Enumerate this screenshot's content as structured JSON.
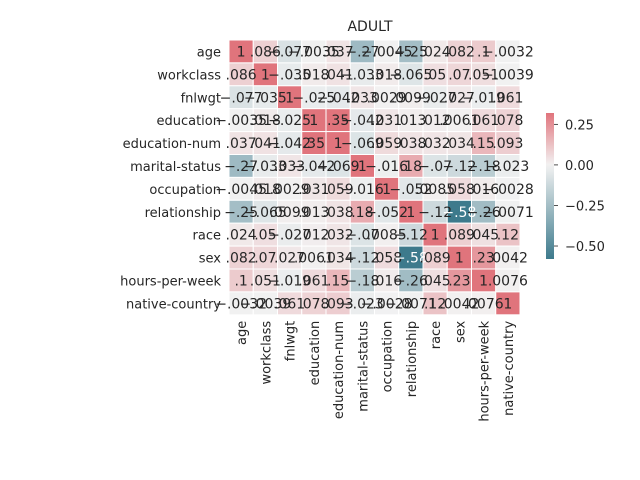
{
  "chart_data": {
    "type": "heatmap",
    "title": "ADULT",
    "variables": [
      "age",
      "workclass",
      "fnlwgt",
      "education",
      "education-num",
      "marital-status",
      "occupation",
      "relationship",
      "race",
      "sex",
      "hours-per-week",
      "native-country"
    ],
    "matrix": [
      [
        1,
        0.086,
        -0.077,
        -0.0035,
        0.037,
        -0.27,
        -0.0045,
        -0.25,
        0.024,
        0.082,
        0.1,
        -0.0032
      ],
      [
        0.086,
        1,
        -0.035,
        0.018,
        0.041,
        -0.033,
        0.018,
        -0.065,
        0.05,
        0.07,
        0.051,
        -0.0039
      ],
      [
        -0.077,
        -0.035,
        1,
        -0.025,
        -0.042,
        0.033,
        0.0029,
        0.0099,
        -0.027,
        0.027,
        -0.019,
        0.061
      ],
      [
        -0.0035,
        0.018,
        -0.025,
        1,
        0.35,
        -0.042,
        0.031,
        0.013,
        0.012,
        0.0061,
        0.061,
        0.078
      ],
      [
        0.037,
        0.041,
        -0.042,
        0.35,
        1,
        -0.069,
        0.059,
        0.038,
        0.032,
        0.034,
        0.15,
        0.093
      ],
      [
        -0.27,
        -0.033,
        0.033,
        -0.042,
        -0.069,
        1,
        -0.016,
        0.18,
        -0.07,
        -0.12,
        -0.18,
        -0.023
      ],
      [
        -0.0045,
        0.018,
        0.0029,
        0.031,
        0.059,
        -0.016,
        1,
        -0.052,
        0.0085,
        0.058,
        0.016,
        -0.0028
      ],
      [
        -0.25,
        -0.065,
        0.0099,
        0.013,
        0.038,
        0.18,
        -0.052,
        1,
        -0.12,
        -0.58,
        -0.26,
        -0.0071
      ],
      [
        0.024,
        0.05,
        -0.027,
        0.012,
        0.032,
        -0.07,
        0.0085,
        -0.12,
        1,
        0.089,
        0.045,
        0.12
      ],
      [
        0.082,
        0.07,
        0.027,
        0.0061,
        0.034,
        -0.12,
        0.058,
        -0.58,
        0.089,
        1,
        0.23,
        0.0042
      ],
      [
        0.1,
        0.051,
        -0.019,
        0.061,
        0.15,
        -0.18,
        0.016,
        -0.26,
        0.045,
        0.23,
        1,
        0.0076
      ],
      [
        -0.0032,
        -0.0039,
        0.061,
        0.078,
        0.093,
        -0.023,
        -0.0028,
        -0.0071,
        0.12,
        0.0042,
        0.0076,
        1
      ]
    ],
    "colorbar": {
      "min": -0.58,
      "max": 0.32,
      "ticks": [
        0.25,
        0.0,
        -0.25,
        -0.5
      ],
      "tick_labels": [
        "0.25",
        "0.00",
        "−0.25",
        "−0.50"
      ],
      "neg_color": "#3d7a8c",
      "mid_color": "#f2f2f2",
      "pos_color": "#e0747c"
    },
    "cell_separator_color": "#ffffff",
    "grid": false,
    "legend": "colorbar-right"
  }
}
